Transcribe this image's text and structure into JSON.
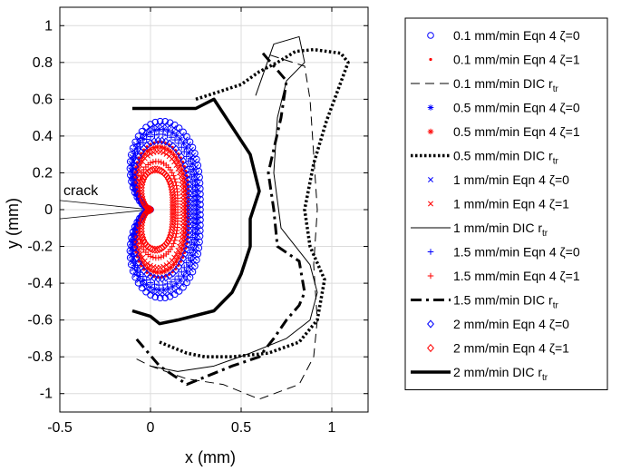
{
  "chart_data": {
    "type": "scatter",
    "title": "",
    "xlabel": "x (mm)",
    "ylabel": "y (mm)",
    "xlim": [
      -0.5,
      1.2
    ],
    "ylim": [
      -1.1,
      1.1
    ],
    "grid": true,
    "legend_position": "outside-right",
    "xticks": [
      -0.5,
      0,
      0.5,
      1
    ],
    "xtick_labels": [
      "-0.5",
      "0",
      "0.5",
      "1"
    ],
    "yticks": [
      1,
      0.8,
      0.6,
      0.4,
      0.2,
      0,
      -0.2,
      -0.4,
      -0.6,
      -0.8,
      -1
    ],
    "ytick_labels": [
      "1",
      "0.8",
      "0.6",
      "0.4",
      "0.2",
      "0",
      "-0.2",
      "-0.4",
      "-0.6",
      "-0.8",
      "-1"
    ],
    "annotations": [
      {
        "text": "crack",
        "x": -0.47,
        "y": 0.08
      }
    ],
    "crack_lines": [
      [
        [
          -0.5,
          0.05
        ],
        [
          0,
          0
        ]
      ],
      [
        [
          -0.5,
          -0.05
        ],
        [
          0,
          0
        ]
      ]
    ],
    "eqn_series": [
      {
        "rate": "0.1 mm/min",
        "zeta": 0,
        "color": "#0000ff",
        "marker": "circle",
        "a": 0.54,
        "w": 0.4,
        "rmax": 1.1
      },
      {
        "rate": "0.1 mm/min",
        "zeta": 1,
        "color": "#ff0000",
        "marker": "dot",
        "a": 0.54,
        "w": 0.4,
        "rmax": 0.84
      },
      {
        "rate": "0.5 mm/min",
        "zeta": 0,
        "color": "#0000ff",
        "marker": "asterisk",
        "a": 0.54,
        "w": 0.4,
        "rmax": 1.0
      },
      {
        "rate": "0.5 mm/min",
        "zeta": 1,
        "color": "#ff0000",
        "marker": "asterisk",
        "a": 0.54,
        "w": 0.4,
        "rmax": 0.78
      },
      {
        "rate": "1 mm/min",
        "zeta": 0,
        "color": "#0000ff",
        "marker": "x",
        "a": 0.54,
        "w": 0.4,
        "rmax": 1.06
      },
      {
        "rate": "1 mm/min",
        "zeta": 1,
        "color": "#ff0000",
        "marker": "x",
        "a": 0.54,
        "w": 0.4,
        "rmax": 0.72
      },
      {
        "rate": "1.5 mm/min",
        "zeta": 0,
        "color": "#0000ff",
        "marker": "plus",
        "a": 0.54,
        "w": 0.4,
        "rmax": 0.94
      },
      {
        "rate": "1.5 mm/min",
        "zeta": 1,
        "color": "#ff0000",
        "marker": "plus",
        "a": 0.54,
        "w": 0.4,
        "rmax": 0.6
      },
      {
        "rate": "2 mm/min",
        "zeta": 0,
        "color": "#0000ff",
        "marker": "diamond",
        "a": 0.54,
        "w": 0.4,
        "rmax": 0.86
      },
      {
        "rate": "2 mm/min",
        "zeta": 1,
        "color": "#ff0000",
        "marker": "diamond",
        "a": 0.54,
        "w": 0.4,
        "rmax": 0.5
      }
    ],
    "dic_series": [
      {
        "rate": "0.1 mm/min",
        "style": "dashed-thin",
        "points": [
          [
            0.66,
            0.84
          ],
          [
            0.85,
            0.78
          ],
          [
            0.88,
            0.6
          ],
          [
            0.9,
            0.3
          ],
          [
            0.92,
            0.0
          ],
          [
            0.9,
            -0.3
          ],
          [
            0.92,
            -0.6
          ],
          [
            0.9,
            -0.8
          ],
          [
            0.82,
            -0.95
          ],
          [
            0.6,
            -1.03
          ],
          [
            0.4,
            -0.95
          ],
          [
            0.2,
            -0.92
          ],
          [
            0.0,
            -0.85
          ],
          [
            -0.1,
            -0.8
          ]
        ]
      },
      {
        "rate": "0.5 mm/min",
        "style": "dotted-thick",
        "points": [
          [
            0.25,
            0.6
          ],
          [
            0.5,
            0.68
          ],
          [
            0.6,
            0.75
          ],
          [
            0.7,
            0.8
          ],
          [
            0.8,
            0.86
          ],
          [
            0.9,
            0.87
          ],
          [
            1.05,
            0.85
          ],
          [
            1.09,
            0.8
          ],
          [
            0.97,
            0.48
          ],
          [
            0.9,
            0.25
          ],
          [
            0.85,
            0.0
          ],
          [
            0.88,
            -0.2
          ],
          [
            0.96,
            -0.38
          ],
          [
            0.92,
            -0.6
          ],
          [
            0.82,
            -0.72
          ],
          [
            0.65,
            -0.78
          ],
          [
            0.45,
            -0.8
          ],
          [
            0.3,
            -0.8
          ],
          [
            0.2,
            -0.78
          ],
          [
            0.05,
            -0.72
          ]
        ]
      },
      {
        "rate": "1 mm/min",
        "style": "solid-thin",
        "points": [
          [
            0.58,
            0.62
          ],
          [
            0.68,
            0.9
          ],
          [
            0.82,
            0.94
          ],
          [
            0.85,
            0.8
          ],
          [
            0.75,
            0.7
          ],
          [
            0.7,
            0.5
          ],
          [
            0.68,
            0.2
          ],
          [
            0.72,
            -0.1
          ],
          [
            0.88,
            -0.3
          ],
          [
            0.92,
            -0.45
          ],
          [
            0.88,
            -0.6
          ],
          [
            0.75,
            -0.7
          ],
          [
            0.55,
            -0.78
          ],
          [
            0.35,
            -0.85
          ],
          [
            0.15,
            -0.88
          ],
          [
            0.0,
            -0.85
          ]
        ]
      },
      {
        "rate": "1.5 mm/min",
        "style": "dashdot-thick",
        "points": [
          [
            0.62,
            0.85
          ],
          [
            0.75,
            0.7
          ],
          [
            0.72,
            0.5
          ],
          [
            0.65,
            0.2
          ],
          [
            0.68,
            0.0
          ],
          [
            0.7,
            -0.2
          ],
          [
            0.82,
            -0.28
          ],
          [
            0.85,
            -0.45
          ],
          [
            0.82,
            -0.52
          ],
          [
            0.75,
            -0.6
          ],
          [
            0.68,
            -0.7
          ],
          [
            0.6,
            -0.8
          ],
          [
            0.45,
            -0.85
          ],
          [
            0.2,
            -0.95
          ],
          [
            0.05,
            -0.85
          ],
          [
            -0.08,
            -0.7
          ]
        ]
      },
      {
        "rate": "2 mm/min",
        "style": "solid-thick",
        "points": [
          [
            -0.1,
            0.55
          ],
          [
            0.05,
            0.55
          ],
          [
            0.25,
            0.55
          ],
          [
            0.35,
            0.6
          ],
          [
            0.45,
            0.45
          ],
          [
            0.55,
            0.3
          ],
          [
            0.6,
            0.1
          ],
          [
            0.55,
            -0.05
          ],
          [
            0.55,
            -0.2
          ],
          [
            0.5,
            -0.35
          ],
          [
            0.45,
            -0.45
          ],
          [
            0.35,
            -0.55
          ],
          [
            0.15,
            -0.6
          ],
          [
            0.05,
            -0.62
          ],
          [
            0.0,
            -0.58
          ],
          [
            -0.1,
            -0.55
          ]
        ]
      }
    ],
    "legend_entries": [
      {
        "label": "0.1 mm/min Eqn 4 ζ=0",
        "kind": "marker",
        "marker": "circle",
        "color": "#0000ff"
      },
      {
        "label": "0.1 mm/min Eqn 4 ζ=1",
        "kind": "marker",
        "marker": "dot",
        "color": "#ff0000"
      },
      {
        "label": "0.1 mm/min DIC r",
        "sub": "tr",
        "kind": "line",
        "style": "dashed-thin"
      },
      {
        "label": "0.5 mm/min Eqn 4 ζ=0",
        "kind": "marker",
        "marker": "asterisk",
        "color": "#0000ff"
      },
      {
        "label": "0.5 mm/min Eqn 4 ζ=1",
        "kind": "marker",
        "marker": "asterisk",
        "color": "#ff0000"
      },
      {
        "label": "0.5 mm/min DIC r",
        "sub": "tr",
        "kind": "line",
        "style": "dotted-thick"
      },
      {
        "label": "1 mm/min Eqn 4 ζ=0",
        "kind": "marker",
        "marker": "x",
        "color": "#0000ff"
      },
      {
        "label": "1 mm/min Eqn 4 ζ=1",
        "kind": "marker",
        "marker": "x",
        "color": "#ff0000"
      },
      {
        "label": "1 mm/min DIC r",
        "sub": "tr",
        "kind": "line",
        "style": "solid-thin"
      },
      {
        "label": "1.5 mm/min Eqn 4 ζ=0",
        "kind": "marker",
        "marker": "plus",
        "color": "#0000ff"
      },
      {
        "label": "1.5 mm/min Eqn 4 ζ=1",
        "kind": "marker",
        "marker": "plus",
        "color": "#ff0000"
      },
      {
        "label": "1.5 mm/min DIC r",
        "sub": "tr",
        "kind": "line",
        "style": "dashdot-thick"
      },
      {
        "label": "2 mm/min Eqn 4 ζ=0",
        "kind": "marker",
        "marker": "diamond",
        "color": "#0000ff"
      },
      {
        "label": "2 mm/min Eqn 4 ζ=1",
        "kind": "marker",
        "marker": "diamond",
        "color": "#ff0000"
      },
      {
        "label": "2 mm/min DIC r",
        "sub": "tr",
        "kind": "line",
        "style": "solid-thick"
      }
    ]
  }
}
